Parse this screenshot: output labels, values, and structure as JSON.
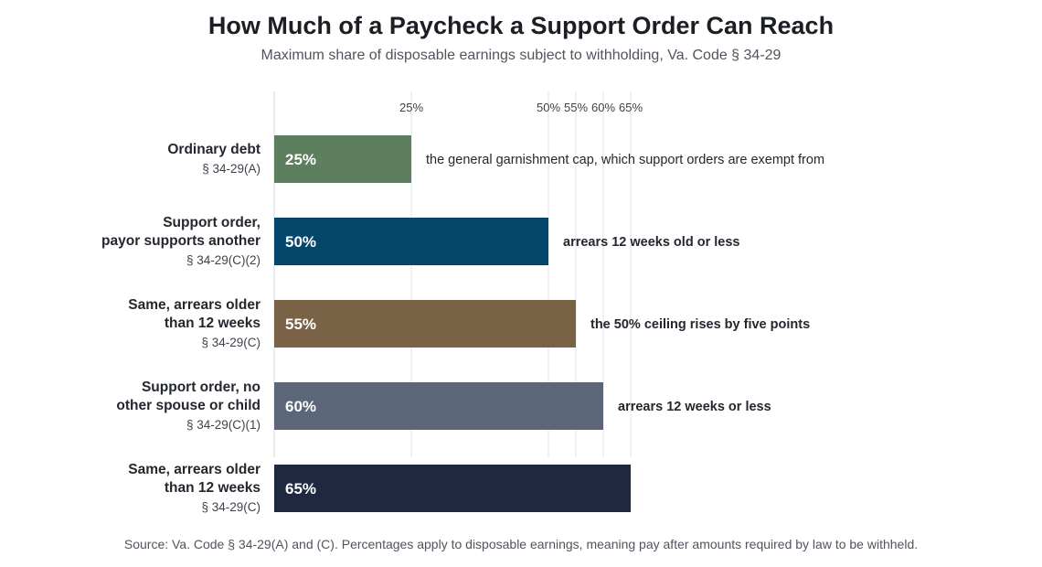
{
  "title": "How Much of a Paycheck a Support Order Can Reach",
  "subtitle": "Maximum share of disposable earnings subject to withholding, Va. Code § 34-29",
  "source": "Source: Va. Code § 34-29(A) and (C). Percentages apply to disposable earnings, meaning pay after amounts required by law to be withheld.",
  "chart_data": {
    "type": "bar",
    "orientation": "horizontal",
    "title": "How Much of a Paycheck a Support Order Can Reach",
    "subtitle": "Maximum share of disposable earnings subject to withholding, Va. Code § 34-29",
    "xlim": [
      0,
      65
    ],
    "x_ticks": [
      25,
      50,
      55,
      60,
      65
    ],
    "x_tick_labels": [
      "25%",
      "50%",
      "55%",
      "60%",
      "65%"
    ],
    "grid": true,
    "categories": [
      {
        "label_lines": [
          "Ordinary debt"
        ],
        "citation": "§ 34-29(A)",
        "value": 25,
        "value_label": "25%",
        "color": "#5d7f5d",
        "annotation": "the general garnishment cap, which support orders are exempt from",
        "annotation_bold": false
      },
      {
        "label_lines": [
          "Support order,",
          "payor supports another"
        ],
        "citation": "§ 34-29(C)(2)",
        "value": 50,
        "value_label": "50%",
        "color": "#05476b",
        "annotation": "arrears 12 weeks old or less",
        "annotation_bold": true
      },
      {
        "label_lines": [
          "Same, arrears older",
          "than 12 weeks"
        ],
        "citation": "§ 34-29(C)",
        "value": 55,
        "value_label": "55%",
        "color": "#7a6246",
        "annotation": "the 50% ceiling rises by five points",
        "annotation_bold": true
      },
      {
        "label_lines": [
          "Support order, no",
          "other spouse or child"
        ],
        "citation": "§ 34-29(C)(1)",
        "value": 60,
        "value_label": "60%",
        "color": "#5b6779",
        "annotation": "arrears 12 weeks or less",
        "annotation_bold": true
      },
      {
        "label_lines": [
          "Same, arrears older",
          "than 12 weeks"
        ],
        "citation": "§ 34-29(C)",
        "value": 65,
        "value_label": "65%",
        "color": "#1f2840",
        "annotation": "",
        "annotation_bold": false
      }
    ]
  }
}
